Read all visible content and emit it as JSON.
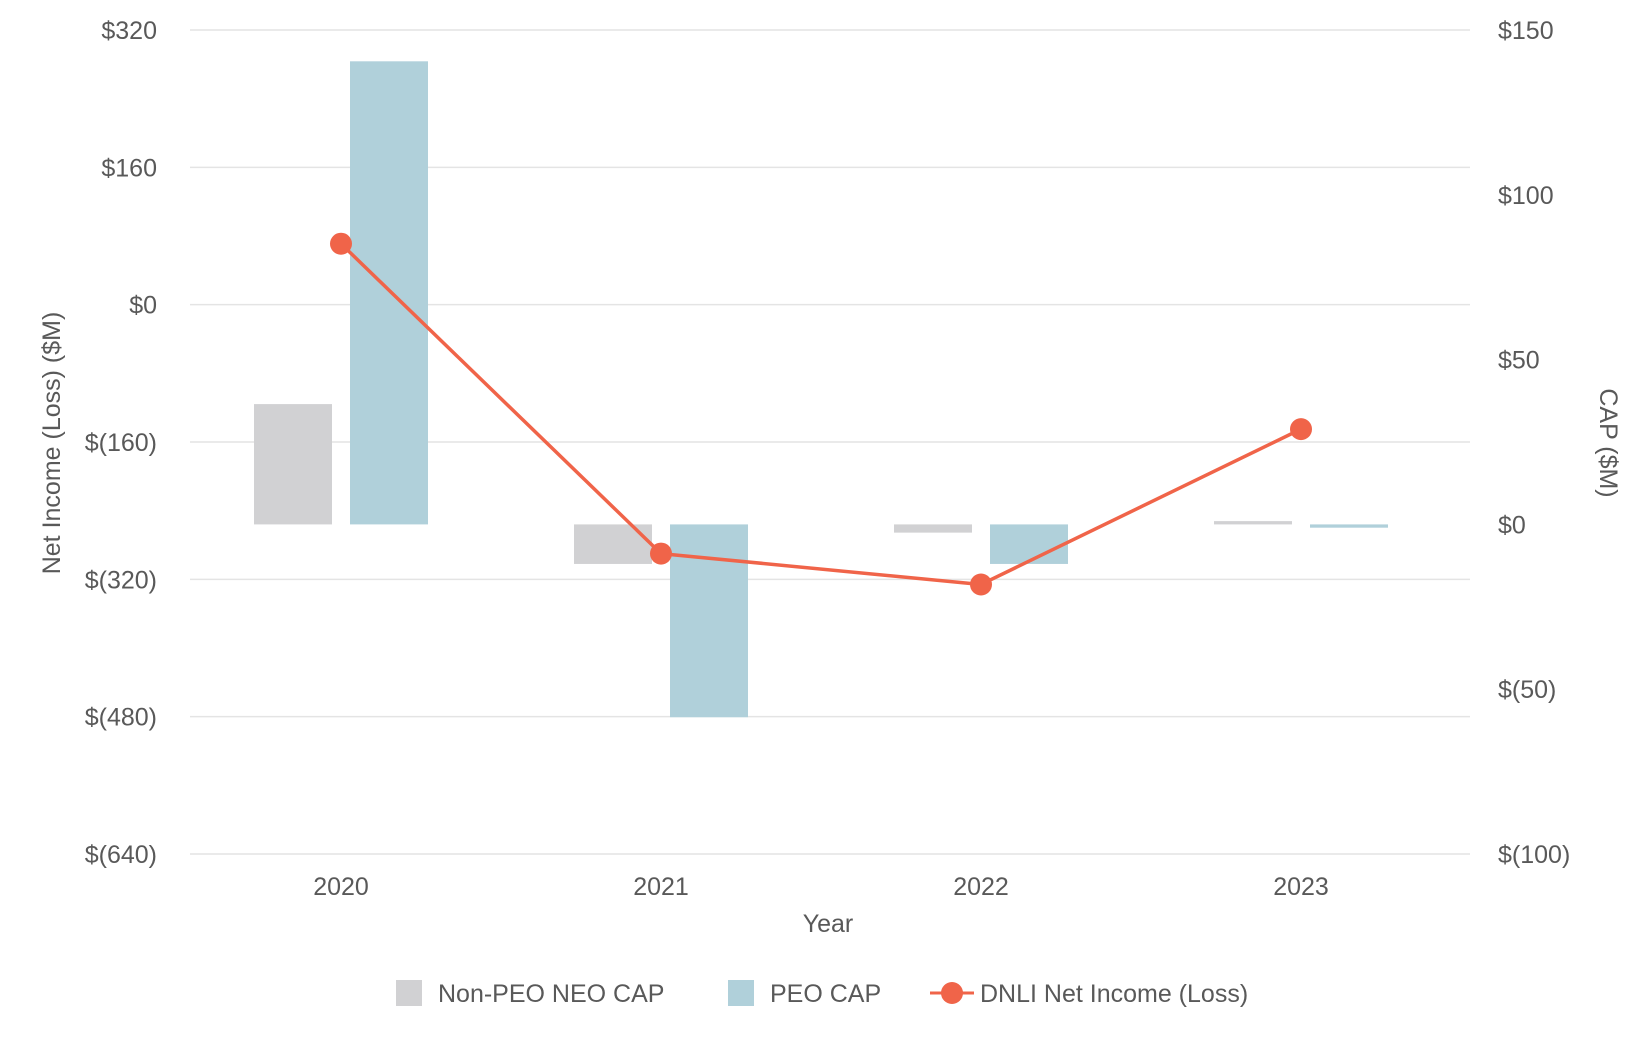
{
  "chart_data": {
    "type": "bar",
    "categories": [
      "2020",
      "2021",
      "2022",
      "2023"
    ],
    "xlabel": "Year",
    "ylabel_left": "Net Income (Loss) ($M)",
    "ylabel_right": "CAP ($M)",
    "left_axis": {
      "ylim": [
        -640,
        320
      ],
      "ticks": [
        320,
        160,
        0,
        -160,
        -320,
        -480,
        -640
      ],
      "tick_labels": [
        "$320",
        "$160",
        "$0",
        "$(160)",
        "$(320)",
        "$(480)",
        "$(640)"
      ]
    },
    "right_axis": {
      "ylim": [
        -100,
        150
      ],
      "ticks": [
        150,
        100,
        50,
        0,
        -50,
        -100
      ],
      "tick_labels": [
        "$150",
        "$100",
        "$50",
        "$0",
        "$(50)",
        "$(100)"
      ]
    },
    "series": [
      {
        "name": "Non-PEO NEO CAP",
        "type": "bar",
        "axis": "right",
        "color": "#d1d1d3",
        "values": [
          36.5,
          -12,
          -2.5,
          1
        ]
      },
      {
        "name": "PEO CAP",
        "type": "bar",
        "axis": "right",
        "color": "#b0d0da",
        "values": [
          140.5,
          -58.5,
          -12,
          -1
        ]
      },
      {
        "name": "DNLI Net Income (Loss)",
        "type": "line",
        "axis": "left",
        "color": "#f06449",
        "values": [
          71,
          -290,
          -326,
          -145
        ]
      }
    ],
    "legend": {
      "position": "bottom",
      "items": [
        "Non-PEO NEO CAP",
        "PEO CAP",
        "DNLI Net Income (Loss)"
      ]
    },
    "grid": true
  }
}
